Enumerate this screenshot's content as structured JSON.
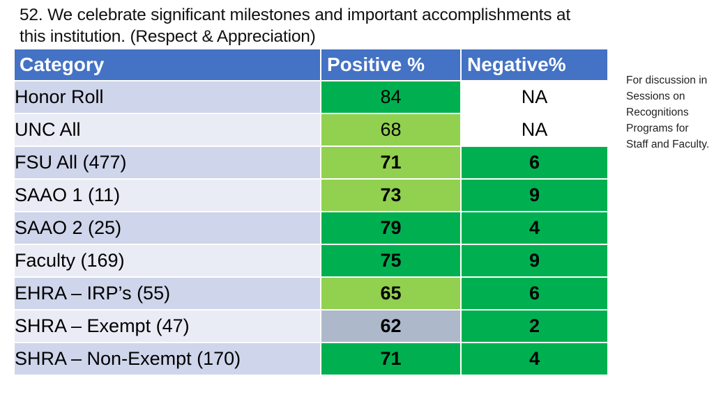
{
  "title": {
    "line1": "52. We celebrate significant milestones and important accomplishments at",
    "line2": "this institution. (Respect & Appreciation)"
  },
  "table": {
    "headers": [
      "Category",
      "Positive %",
      "Negative%"
    ],
    "rows": [
      {
        "category": "Honor Roll",
        "positive": "84",
        "negative": "NA"
      },
      {
        "category": "UNC All",
        "positive": "68",
        "negative": "NA"
      },
      {
        "category": "FSU All (477)",
        "positive": "71",
        "negative": "6"
      },
      {
        "category": "SAAO 1 (11)",
        "positive": "73",
        "negative": "9"
      },
      {
        "category": "SAAO 2 (25)",
        "positive": "79",
        "negative": "4"
      },
      {
        "category": "Faculty (169)",
        "positive": "75",
        "negative": "9"
      },
      {
        "category": "EHRA – IRP’s (55)",
        "positive": "65",
        "negative": "6"
      },
      {
        "category": "SHRA – Exempt (47)",
        "positive": "62",
        "negative": "2"
      },
      {
        "category": "SHRA – Non-Exempt (170)",
        "positive": "71",
        "negative": "4"
      }
    ]
  },
  "colors": {
    "header": "#4472c4",
    "dark_green": "#00b050",
    "light_green": "#92d050",
    "gray": "#adb9ca",
    "category_band_1": "#cfd5ea",
    "category_band_2": "#e9ebf5"
  },
  "note": "For discussion in Sessions on Recognitions Programs for Staff and Faculty."
}
